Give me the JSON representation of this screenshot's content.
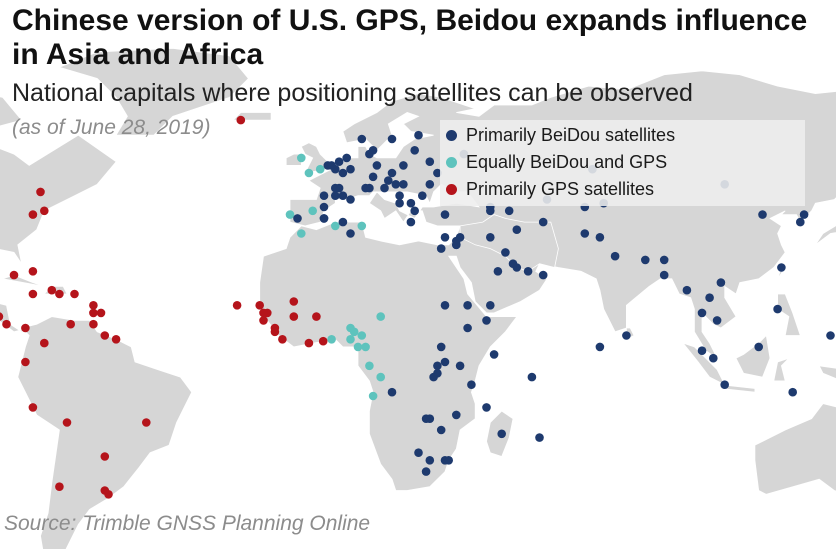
{
  "title": "Chinese version of U.S. GPS, Beidou expands influence in Asia and Africa",
  "subtitle": "National capitals where positioning satellites can be observed",
  "date_note": "(as of June 28, 2019)",
  "source": "Source: Trimble GNSS Planning Online",
  "colors": {
    "beidou": "#1e3a6e",
    "equal": "#5ec3bd",
    "gps": "#b5141b",
    "land": "#d6d6d6",
    "border": "#ffffff",
    "ocean": "#ffffff"
  },
  "legend": [
    {
      "key": "beidou",
      "label": "Primarily BeiDou satellites"
    },
    {
      "key": "equal",
      "label": "Equally BeiDou and GPS"
    },
    {
      "key": "gps",
      "label": "Primarily GPS satellites"
    }
  ],
  "capitals": {
    "beidou": [
      [
        3,
        51
      ],
      [
        2,
        52
      ],
      [
        7,
        51
      ],
      [
        0,
        41
      ],
      [
        5,
        44
      ],
      [
        11,
        46
      ],
      [
        20,
        44
      ],
      [
        0,
        38
      ],
      [
        -7,
        38
      ],
      [
        1,
        52
      ],
      [
        6,
        54
      ],
      [
        4,
        46
      ],
      [
        0,
        38
      ],
      [
        3,
        46
      ],
      [
        7,
        43
      ],
      [
        4,
        53
      ],
      [
        0,
        44
      ],
      [
        3,
        44
      ],
      [
        5,
        37
      ],
      [
        7,
        34
      ],
      [
        5,
        50
      ],
      [
        14,
        52
      ],
      [
        13,
        49
      ],
      [
        12,
        46
      ],
      [
        16,
        46
      ],
      [
        18,
        50
      ],
      [
        20,
        42
      ],
      [
        21,
        47
      ],
      [
        17,
        48
      ],
      [
        19,
        47
      ],
      [
        21,
        52
      ],
      [
        23,
        42
      ],
      [
        26,
        44
      ],
      [
        24,
        56
      ],
      [
        25,
        60
      ],
      [
        18,
        59
      ],
      [
        10,
        59
      ],
      [
        12,
        55
      ],
      [
        13,
        56
      ],
      [
        28,
        53
      ],
      [
        30,
        50
      ],
      [
        37,
        55
      ],
      [
        28,
        47
      ],
      [
        44,
        41
      ],
      [
        44,
        40
      ],
      [
        49,
        40
      ],
      [
        32,
        39
      ],
      [
        23,
        37
      ],
      [
        24,
        40
      ],
      [
        36,
        33
      ],
      [
        35,
        31
      ],
      [
        35,
        31
      ],
      [
        44,
        33
      ],
      [
        51,
        35
      ],
      [
        58,
        37
      ],
      [
        59,
        43
      ],
      [
        69,
        41
      ],
      [
        71,
        51
      ],
      [
        74,
        42
      ],
      [
        69,
        34
      ],
      [
        73,
        33
      ],
      [
        77,
        28
      ],
      [
        85,
        27
      ],
      [
        90,
        27
      ],
      [
        90,
        23
      ],
      [
        96,
        19
      ],
      [
        100,
        13
      ],
      [
        104,
        11
      ],
      [
        102,
        17
      ],
      [
        105,
        21
      ],
      [
        116,
        39
      ],
      [
        106,
        47
      ],
      [
        127,
        39
      ],
      [
        126,
        37
      ],
      [
        139,
        35
      ],
      [
        121,
        25
      ],
      [
        100,
        3
      ],
      [
        103,
        1
      ],
      [
        106,
        -6
      ],
      [
        115,
        4
      ],
      [
        120,
        14
      ],
      [
        124,
        -8
      ],
      [
        147,
        -9
      ],
      [
        134,
        7
      ],
      [
        158,
        6
      ],
      [
        171,
        7
      ],
      [
        172,
        1
      ],
      [
        178,
        -8
      ],
      [
        167,
        -1
      ],
      [
        168,
        -17
      ],
      [
        159,
        -9
      ],
      [
        178,
        -18
      ],
      [
        -176,
        -21
      ],
      [
        -172,
        -13
      ],
      [
        -171,
        -14
      ],
      [
        150,
        -36
      ],
      [
        174,
        -41
      ],
      [
        31,
        30
      ],
      [
        32,
        15
      ],
      [
        38,
        15
      ],
      [
        43,
        11
      ],
      [
        38,
        9
      ],
      [
        31,
        4
      ],
      [
        45,
        2
      ],
      [
        36,
        -1
      ],
      [
        32,
        0
      ],
      [
        30,
        -1
      ],
      [
        30,
        -3
      ],
      [
        29,
        -4
      ],
      [
        39,
        -6
      ],
      [
        27,
        -15
      ],
      [
        28,
        -15
      ],
      [
        35,
        -14
      ],
      [
        31,
        -18
      ],
      [
        25,
        -24
      ],
      [
        28,
        -26
      ],
      [
        32,
        -26
      ],
      [
        27,
        -29
      ],
      [
        33,
        -26
      ],
      [
        47,
        -19
      ],
      [
        57,
        -20
      ],
      [
        55,
        -4
      ],
      [
        43,
        -12
      ],
      [
        73,
        4
      ],
      [
        80,
        7
      ],
      [
        44,
        15
      ],
      [
        58,
        23
      ],
      [
        54,
        24
      ],
      [
        51,
        25
      ],
      [
        50,
        26
      ],
      [
        48,
        29
      ],
      [
        46,
        24
      ],
      [
        35,
        32
      ],
      [
        18,
        -8
      ],
      [
        32,
        33
      ]
    ],
    "equal": [
      [
        -6,
        54
      ],
      [
        -9,
        39
      ],
      [
        -3,
        40
      ],
      [
        -1,
        51
      ],
      [
        -6,
        34
      ],
      [
        3,
        36
      ],
      [
        10,
        36
      ],
      [
        -4,
        50
      ],
      [
        2,
        6
      ],
      [
        7,
        9
      ],
      [
        11,
        4
      ],
      [
        7,
        6
      ],
      [
        9,
        4
      ],
      [
        10,
        7
      ],
      [
        15,
        12
      ],
      [
        8,
        8
      ],
      [
        15,
        -4
      ],
      [
        13,
        -9
      ],
      [
        12,
        -1
      ]
    ],
    "gps": [
      [
        -22,
        64
      ],
      [
        -75,
        45
      ],
      [
        -77,
        39
      ],
      [
        -74,
        40
      ],
      [
        -99,
        19
      ],
      [
        -90,
        15
      ],
      [
        -87,
        14
      ],
      [
        -89,
        13
      ],
      [
        -86,
        12
      ],
      [
        -84,
        10
      ],
      [
        -79,
        9
      ],
      [
        -77,
        24
      ],
      [
        -82,
        23
      ],
      [
        -77,
        18
      ],
      [
        -72,
        19
      ],
      [
        -70,
        18
      ],
      [
        -66,
        18
      ],
      [
        -61,
        15
      ],
      [
        -61,
        13
      ],
      [
        -59,
        13
      ],
      [
        -61,
        10
      ],
      [
        -67,
        10
      ],
      [
        -58,
        7
      ],
      [
        -55,
        6
      ],
      [
        -74,
        5
      ],
      [
        -79,
        0
      ],
      [
        -77,
        -12
      ],
      [
        -68,
        -16
      ],
      [
        -58,
        -25
      ],
      [
        -57,
        -35
      ],
      [
        -58,
        -34
      ],
      [
        -70,
        -33
      ],
      [
        -47,
        -16
      ],
      [
        -17,
        15
      ],
      [
        -15,
        13
      ],
      [
        -16,
        13
      ],
      [
        -16,
        11
      ],
      [
        -13,
        9
      ],
      [
        -13,
        8
      ],
      [
        -11,
        6
      ],
      [
        -8,
        12
      ],
      [
        -4,
        5
      ],
      [
        -2,
        12
      ],
      [
        -0.2,
        5.5
      ],
      [
        -23,
        15
      ],
      [
        -8,
        16
      ]
    ]
  }
}
